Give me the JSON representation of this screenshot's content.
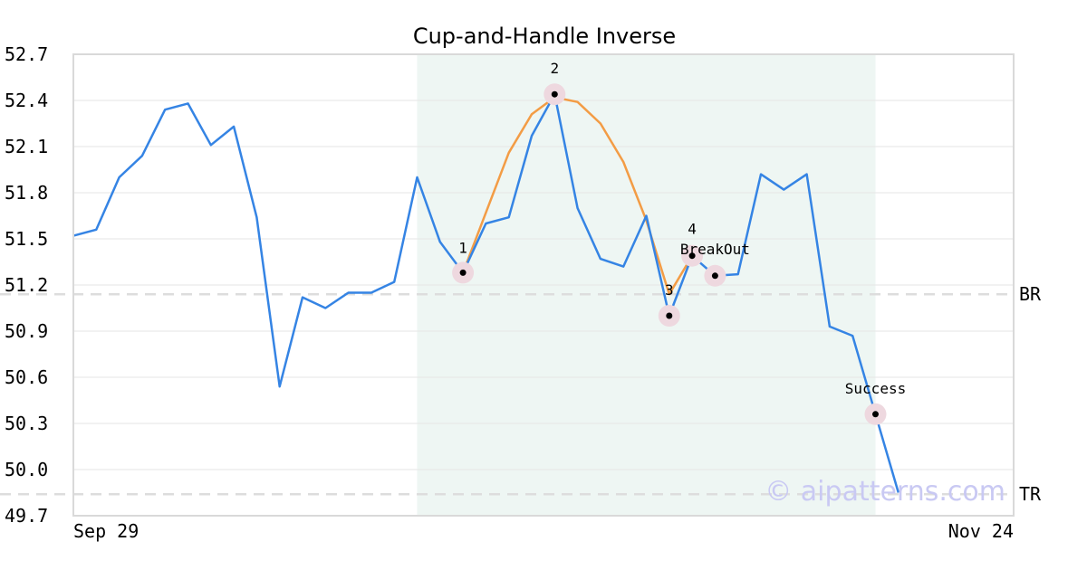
{
  "chart_data": {
    "type": "line",
    "title": "Cup-and-Handle Inverse",
    "xlabel": "",
    "ylabel": "",
    "ylim": [
      49.7,
      52.7
    ],
    "y_ticks": [
      "52.7",
      "52.4",
      "52.1",
      "51.8",
      "51.5",
      "51.2",
      "50.9",
      "50.6",
      "50.3",
      "50.0",
      "49.7"
    ],
    "x_tick_labels": {
      "start": "Sep 29",
      "end": "Nov 24"
    },
    "grid": true,
    "colors": {
      "price": "#3584e4",
      "pattern": "#f39c45",
      "shade": "#eef6f3",
      "level_line": "#dddddd",
      "marker_halo": "#eed8df",
      "marker_dot": "#000000",
      "grid": "#e6e6e6",
      "frame": "#d9d9d9"
    },
    "series": [
      {
        "values": [
          51.52,
          51.56,
          51.9,
          52.04,
          52.34,
          52.38,
          52.11,
          52.23,
          51.64,
          50.54,
          51.12,
          51.05,
          51.15,
          51.15,
          51.22,
          51.9,
          51.48,
          51.28,
          51.6,
          51.64,
          52.17,
          52.44,
          51.7,
          51.37,
          51.32,
          51.65,
          51.0,
          51.39,
          51.26,
          51.27,
          51.92,
          51.82,
          51.92,
          50.93,
          50.87,
          50.36,
          49.85
        ]
      },
      {
        "start_index": 17,
        "values": [
          51.28,
          51.67,
          52.06,
          52.31,
          52.42,
          52.39,
          52.25,
          52.0,
          51.62,
          51.14,
          51.39
        ]
      }
    ],
    "shaded_x_range": [
      15,
      35
    ],
    "levels": [
      {
        "label": "BR",
        "y": 51.14
      },
      {
        "label": "TR",
        "y": 49.84
      }
    ],
    "annotations": [
      {
        "label": "1",
        "x": 17,
        "y": 51.28
      },
      {
        "label": "2",
        "x": 21,
        "y": 52.44
      },
      {
        "label": "3",
        "x": 26,
        "y": 51.0
      },
      {
        "label": "4",
        "x": 27,
        "y": 51.39
      },
      {
        "label": "BreakOut",
        "x": 28,
        "y": 51.26
      },
      {
        "label": "Success",
        "x": 35,
        "y": 50.36
      }
    ],
    "watermark": "© aipatterns.com"
  }
}
